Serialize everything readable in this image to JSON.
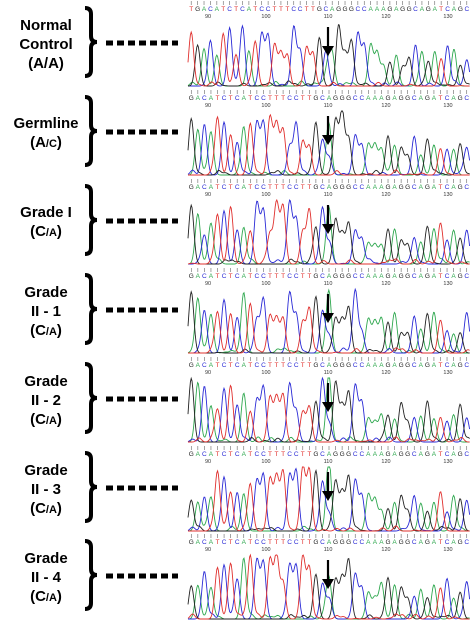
{
  "title": "",
  "sequence_top": "TGACATCTCATCCTTTCCTTGCAGGGCCAAAGAGGCAGATCAGC",
  "sequence": "GACATCTCATCCTTTCCTTGCAGGGCCAAAGAGGCAGATCAGC",
  "position_ticks": [
    "90",
    "100",
    "110",
    "120",
    "130"
  ],
  "colors": {
    "A": "#2fa84f",
    "C": "#2a2ad6",
    "G": "#222222",
    "T": "#e0302e",
    "arrow": "#000000",
    "bracket": "#000000"
  },
  "icons": {
    "arrow": "down-arrow-icon",
    "bracket": "right-curly-bracket-icon"
  },
  "samples": [
    {
      "label": {
        "line1": "Normal",
        "line2": "Control",
        "genotype_main": "A/A",
        "genotype_small": ""
      }
    },
    {
      "label": {
        "line1": "Germline",
        "line2": "",
        "genotype_main": "A",
        "genotype_small": "/C"
      }
    },
    {
      "label": {
        "line1": "Grade I",
        "line2": "",
        "genotype_main": "C",
        "genotype_small": "/A"
      }
    },
    {
      "label": {
        "line1": "Grade",
        "line2": "II - 1",
        "genotype_main": "C",
        "genotype_small": "/A"
      }
    },
    {
      "label": {
        "line1": "Grade",
        "line2": "II - 2",
        "genotype_main": "C",
        "genotype_small": "/A"
      }
    },
    {
      "label": {
        "line1": "Grade",
        "line2": "II - 3",
        "genotype_main": "C",
        "genotype_small": "/A"
      }
    },
    {
      "label": {
        "line1": "Grade",
        "line2": "II - 4",
        "genotype_main": "C",
        "genotype_small": "/A"
      }
    }
  ]
}
